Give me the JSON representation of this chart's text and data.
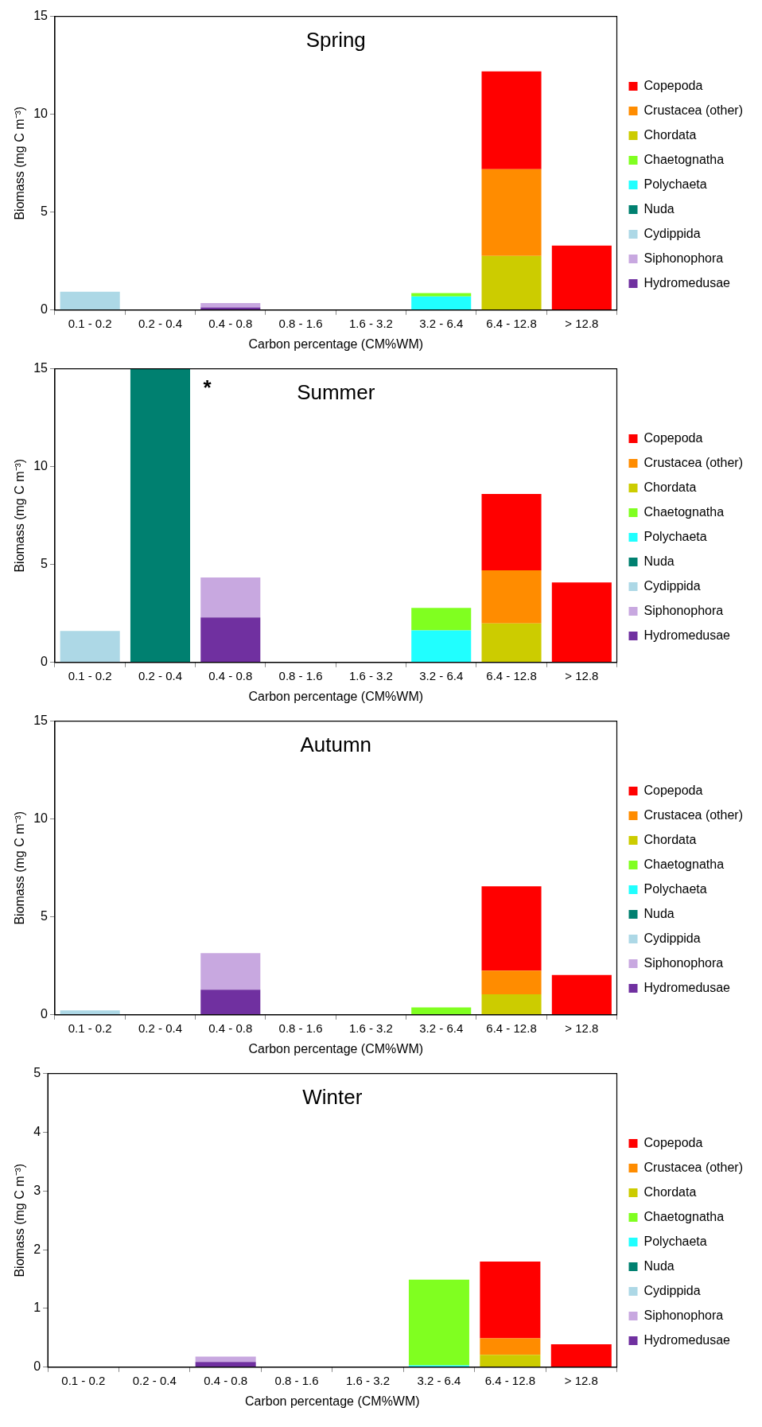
{
  "chart_data": [
    {
      "type": "bar",
      "title": "Spring",
      "xlabel": "Carbon percentage (CM%WM)",
      "ylabel": "Biomass (mg C m⁻³)",
      "categories": [
        "0.1 - 0.2",
        "0.2 - 0.4",
        "0.4 - 0.8",
        "0.8 - 1.6",
        "1.6 - 3.2",
        "3.2 - 6.4",
        "6.4 - 12.8",
        "> 12.8"
      ],
      "stacked": true,
      "ylim": [
        0,
        15
      ],
      "yticks": [
        0,
        5,
        10,
        15
      ],
      "grid": false,
      "legend": "right",
      "series": [
        {
          "name": "Hydromedusae",
          "color": "#7030a0",
          "values": [
            0,
            0,
            0.13,
            0,
            0,
            0,
            0,
            0
          ]
        },
        {
          "name": "Siphonophora",
          "color": "#c8a8e0",
          "values": [
            0,
            0,
            0.23,
            0,
            0,
            0,
            0,
            0
          ]
        },
        {
          "name": "Cydippida",
          "color": "#add8e6",
          "values": [
            0.94,
            0,
            0,
            0,
            0,
            0,
            0,
            0
          ]
        },
        {
          "name": "Nuda",
          "color": "#008070",
          "values": [
            0,
            0,
            0,
            0,
            0,
            0,
            0,
            0
          ]
        },
        {
          "name": "Polychaeta",
          "color": "#20ffff",
          "values": [
            0,
            0,
            0,
            0,
            0,
            0.69,
            0,
            0
          ]
        },
        {
          "name": "Chaetognatha",
          "color": "#80ff20",
          "values": [
            0,
            0,
            0,
            0,
            0,
            0.18,
            0,
            0
          ]
        },
        {
          "name": "Chordata",
          "color": "#cccc00",
          "values": [
            0,
            0,
            0,
            0,
            0,
            0,
            2.76,
            0
          ]
        },
        {
          "name": "Crustacea (other)",
          "color": "#ff8c00",
          "values": [
            0,
            0,
            0,
            0,
            0,
            0,
            4.43,
            0
          ]
        },
        {
          "name": "Copepoda",
          "color": "#ff0000",
          "values": [
            0,
            0,
            0,
            0,
            0,
            0,
            5.0,
            3.29
          ]
        }
      ]
    },
    {
      "type": "bar",
      "title": "Summer",
      "xlabel": "Carbon percentage (CM%WM)",
      "ylabel": "Biomass (mg C m⁻³)",
      "categories": [
        "0.1 - 0.2",
        "0.2 - 0.4",
        "0.4 - 0.8",
        "0.8 - 1.6",
        "1.6 - 3.2",
        "3.2 - 6.4",
        "6.4 - 12.8",
        "> 12.8"
      ],
      "stacked": true,
      "ylim": [
        0,
        15
      ],
      "yticks": [
        0,
        5,
        10,
        15
      ],
      "grid": false,
      "legend": "right",
      "annotations": [
        {
          "text": "*",
          "x": "0.2 - 0.4",
          "y": 15
        }
      ],
      "series": [
        {
          "name": "Hydromedusae",
          "color": "#7030a0",
          "values": [
            0,
            0,
            2.3,
            0,
            0,
            0,
            0,
            0
          ]
        },
        {
          "name": "Siphonophora",
          "color": "#c8a8e0",
          "values": [
            0,
            0,
            2.04,
            0,
            0,
            0,
            0,
            0
          ]
        },
        {
          "name": "Cydippida",
          "color": "#add8e6",
          "values": [
            1.61,
            0,
            0,
            0,
            0,
            0,
            0,
            0
          ]
        },
        {
          "name": "Nuda",
          "color": "#008070",
          "values": [
            0,
            15,
            0,
            0,
            0,
            0,
            0,
            0
          ]
        },
        {
          "name": "Polychaeta",
          "color": "#20ffff",
          "values": [
            0,
            0,
            0,
            0,
            0,
            1.64,
            0,
            0
          ]
        },
        {
          "name": "Chaetognatha",
          "color": "#80ff20",
          "values": [
            0,
            0,
            0,
            0,
            0,
            1.15,
            0,
            0
          ]
        },
        {
          "name": "Chordata",
          "color": "#cccc00",
          "values": [
            0,
            0,
            0,
            0,
            0,
            0,
            1.99,
            0
          ]
        },
        {
          "name": "Crustacea (other)",
          "color": "#ff8c00",
          "values": [
            0,
            0,
            0,
            0,
            0,
            0,
            2.71,
            0
          ]
        },
        {
          "name": "Copepoda",
          "color": "#ff0000",
          "values": [
            0,
            0,
            0,
            0,
            0,
            0,
            3.91,
            4.09
          ]
        }
      ]
    },
    {
      "type": "bar",
      "title": "Autumn",
      "xlabel": "Carbon percentage (CM%WM)",
      "ylabel": "Biomass (mg C m⁻³)",
      "categories": [
        "0.1 - 0.2",
        "0.2 - 0.4",
        "0.4 - 0.8",
        "0.8 - 1.6",
        "1.6 - 3.2",
        "3.2 - 6.4",
        "6.4 - 12.8",
        "> 12.8"
      ],
      "stacked": true,
      "ylim": [
        0,
        15
      ],
      "yticks": [
        0,
        5,
        10,
        15
      ],
      "grid": false,
      "legend": "right",
      "series": [
        {
          "name": "Hydromedusae",
          "color": "#7030a0",
          "values": [
            0,
            0,
            1.28,
            0,
            0,
            0,
            0,
            0
          ]
        },
        {
          "name": "Siphonophora",
          "color": "#c8a8e0",
          "values": [
            0,
            0,
            1.87,
            0,
            0,
            0,
            0,
            0
          ]
        },
        {
          "name": "Cydippida",
          "color": "#add8e6",
          "values": [
            0.23,
            0,
            0,
            0,
            0,
            0,
            0,
            0
          ]
        },
        {
          "name": "Nuda",
          "color": "#008070",
          "values": [
            0,
            0,
            0,
            0,
            0,
            0,
            0,
            0
          ]
        },
        {
          "name": "Polychaeta",
          "color": "#20ffff",
          "values": [
            0,
            0,
            0,
            0,
            0,
            0,
            0,
            0
          ]
        },
        {
          "name": "Chaetognatha",
          "color": "#80ff20",
          "values": [
            0,
            0,
            0,
            0,
            0,
            0.38,
            0,
            0
          ]
        },
        {
          "name": "Chordata",
          "color": "#cccc00",
          "values": [
            0,
            0,
            0,
            0,
            0,
            0,
            1.05,
            0
          ]
        },
        {
          "name": "Crustacea (other)",
          "color": "#ff8c00",
          "values": [
            0,
            0,
            0,
            0,
            0,
            0,
            1.21,
            0
          ]
        },
        {
          "name": "Copepoda",
          "color": "#ff0000",
          "values": [
            0,
            0,
            0,
            0,
            0,
            0,
            4.3,
            2.03
          ]
        }
      ]
    },
    {
      "type": "bar",
      "title": "Winter",
      "xlabel": "Carbon percentage (CM%WM)",
      "ylabel": "Biomass (mg C m⁻³)",
      "categories": [
        "0.1 - 0.2",
        "0.2 - 0.4",
        "0.4 - 0.8",
        "0.8 - 1.6",
        "1.6 - 3.2",
        "3.2 - 6.4",
        "6.4 - 12.8",
        "> 12.8"
      ],
      "stacked": true,
      "ylim": [
        0,
        5
      ],
      "yticks": [
        0,
        1,
        2,
        3,
        4,
        5
      ],
      "grid": false,
      "legend": "right",
      "series": [
        {
          "name": "Hydromedusae",
          "color": "#7030a0",
          "values": [
            0,
            0,
            0.09,
            0,
            0,
            0,
            0,
            0
          ]
        },
        {
          "name": "Siphonophora",
          "color": "#c8a8e0",
          "values": [
            0,
            0,
            0.09,
            0,
            0,
            0,
            0,
            0
          ]
        },
        {
          "name": "Cydippida",
          "color": "#add8e6",
          "values": [
            0,
            0,
            0,
            0,
            0,
            0,
            0,
            0
          ]
        },
        {
          "name": "Nuda",
          "color": "#008070",
          "values": [
            0,
            0,
            0,
            0,
            0,
            0,
            0,
            0
          ]
        },
        {
          "name": "Polychaeta",
          "color": "#20ffff",
          "values": [
            0,
            0,
            0,
            0,
            0,
            0.03,
            0,
            0
          ]
        },
        {
          "name": "Chaetognatha",
          "color": "#80ff20",
          "values": [
            0,
            0,
            0,
            0,
            0,
            1.46,
            0,
            0
          ]
        },
        {
          "name": "Chordata",
          "color": "#cccc00",
          "values": [
            0,
            0,
            0,
            0,
            0,
            0,
            0.21,
            0
          ]
        },
        {
          "name": "Crustacea (other)",
          "color": "#ff8c00",
          "values": [
            0,
            0,
            0,
            0,
            0,
            0,
            0.28,
            0
          ]
        },
        {
          "name": "Copepoda",
          "color": "#ff0000",
          "values": [
            0,
            0,
            0,
            0,
            0,
            0,
            1.31,
            0.39
          ]
        }
      ]
    }
  ]
}
